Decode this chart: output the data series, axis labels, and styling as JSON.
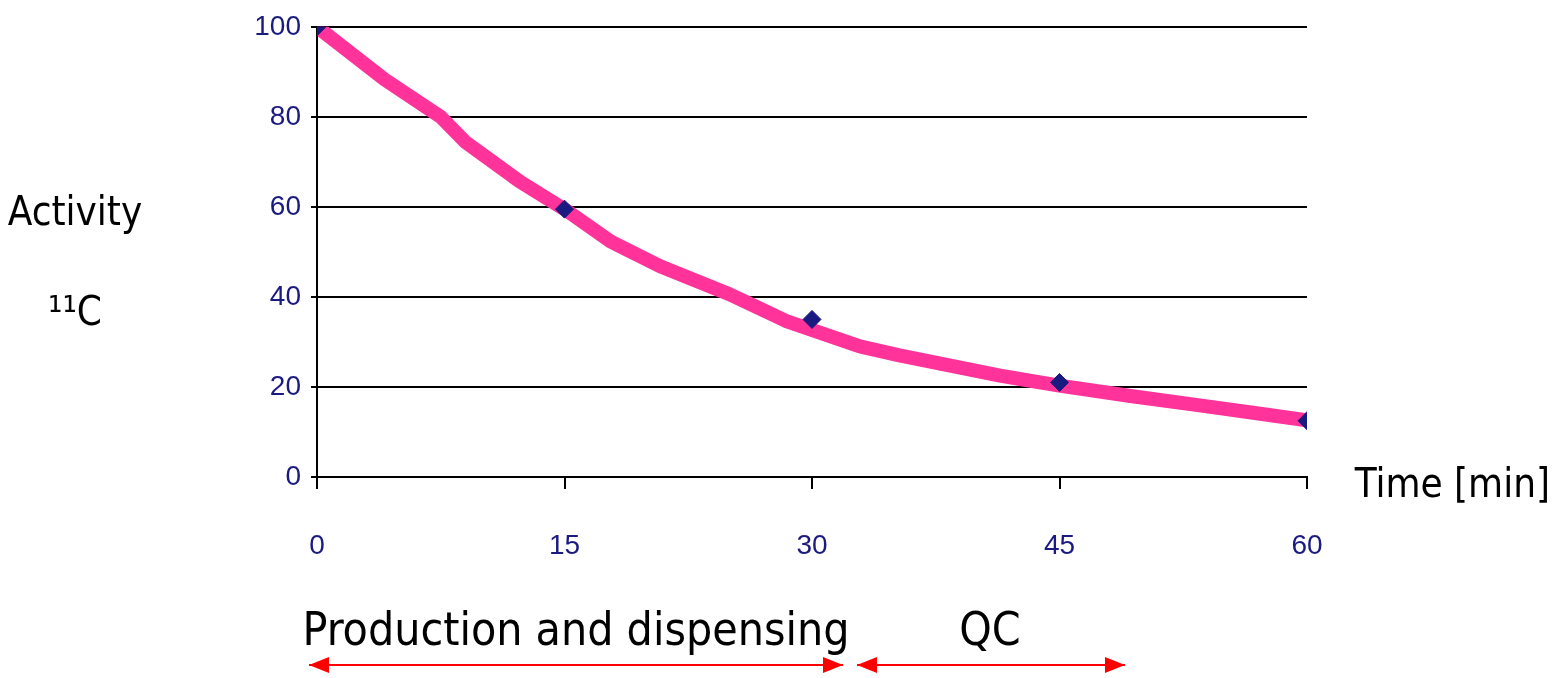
{
  "chart_data": {
    "type": "line",
    "xlabel": "Time [min]",
    "ylabel": "Activity ¹¹C",
    "xlim": [
      0,
      60
    ],
    "xticks": [
      0,
      15,
      30,
      45,
      60
    ],
    "ylim": [
      0,
      100
    ],
    "yticks": [
      0,
      20,
      40,
      60,
      80,
      100
    ],
    "grid": "y",
    "legend": false,
    "series": [
      {
        "type": "scatter",
        "color": "#1a1a80",
        "marker": "diamond",
        "x": [
          0,
          15,
          30,
          45,
          60
        ],
        "values": [
          100,
          59.5,
          35,
          21,
          12.5
        ]
      },
      {
        "color": "#ff3399",
        "marker": "none",
        "x": [
          0,
          4.1,
          7.5,
          9,
          12.3,
          15.2,
          17.8,
          20.8,
          25,
          28.4,
          32.9,
          35.3,
          41.4,
          45,
          49.3,
          53.5,
          60
        ],
        "values": [
          100,
          88.3,
          80,
          74.4,
          65.6,
          59,
          52.3,
          46.8,
          40.6,
          34.7,
          29,
          27,
          22.5,
          20.3,
          18,
          15.9,
          12.6
        ]
      }
    ],
    "annotations": [
      "Production and dispensing",
      "QC"
    ]
  }
}
